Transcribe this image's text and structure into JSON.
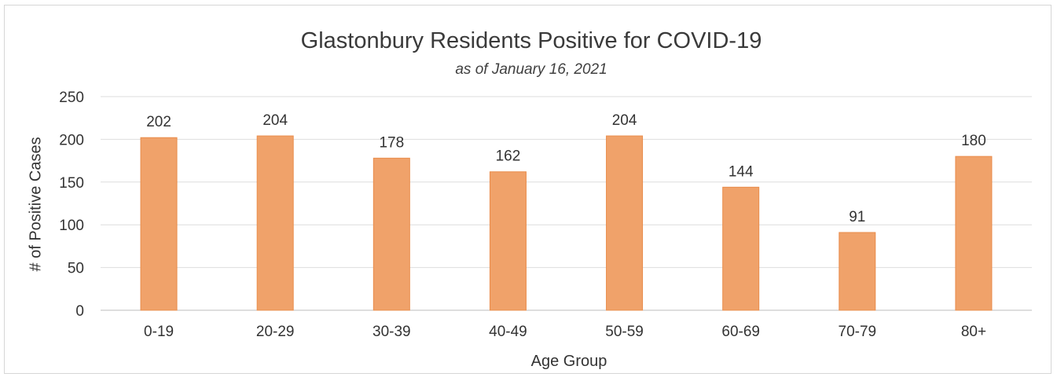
{
  "chart_data": {
    "type": "bar",
    "title": "Glastonbury Residents Positive for COVID-19",
    "subtitle": "as of January 16, 2021",
    "xlabel": "Age Group",
    "ylabel": "# of Positive Cases",
    "categories": [
      "0-19",
      "20-29",
      "30-39",
      "40-49",
      "50-59",
      "60-69",
      "70-79",
      "80+"
    ],
    "values": [
      202,
      204,
      178,
      162,
      204,
      144,
      91,
      180
    ],
    "data_labels": [
      "202",
      "204",
      "178",
      "162",
      "204",
      "144",
      "91",
      "180"
    ],
    "ylim": [
      0,
      250
    ],
    "yticks": [
      0,
      50,
      100,
      150,
      200,
      250
    ],
    "ytick_labels": [
      "0",
      "50",
      "100",
      "150",
      "200",
      "250"
    ],
    "grid": true,
    "legend": "none",
    "bar_color": "#f0a26a"
  }
}
